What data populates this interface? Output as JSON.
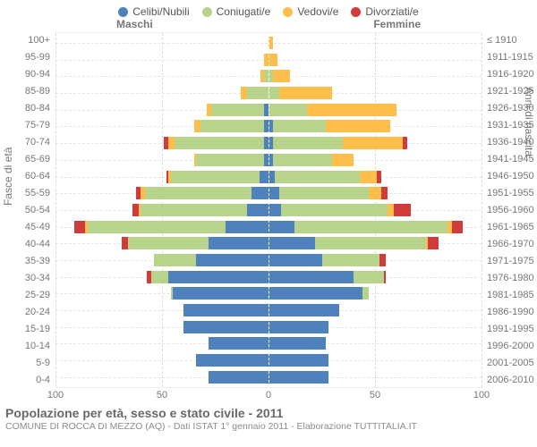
{
  "chart": {
    "type": "population-pyramid",
    "background_color": "#ffffff",
    "grid_color": "#e0e0e0",
    "text_color": "#777777",
    "legend": [
      {
        "label": "Celibi/Nubili",
        "color": "#4f81bd"
      },
      {
        "label": "Coniugati/e",
        "color": "#b8d38c"
      },
      {
        "label": "Vedovi/e",
        "color": "#fdbe4b"
      },
      {
        "label": "Divorziati/e",
        "color": "#d13b3b"
      }
    ],
    "gender_left": "Maschi",
    "gender_right": "Femmine",
    "y_axis_left_title": "Fasce di età",
    "y_axis_right_title": "Anni di nascita",
    "x_axis": {
      "max": 100,
      "ticks": [
        100,
        50,
        0,
        50,
        100
      ]
    },
    "age_brackets": [
      {
        "age": "100+",
        "cohort": "≤ 1910",
        "m": [
          0,
          0,
          0,
          0
        ],
        "f": [
          0,
          0,
          2,
          0
        ]
      },
      {
        "age": "95-99",
        "cohort": "1911-1915",
        "m": [
          0,
          0,
          2,
          0
        ],
        "f": [
          0,
          0,
          4,
          0
        ]
      },
      {
        "age": "90-94",
        "cohort": "1916-1920",
        "m": [
          0,
          2,
          2,
          0
        ],
        "f": [
          0,
          2,
          8,
          0
        ]
      },
      {
        "age": "85-89",
        "cohort": "1921-1925",
        "m": [
          0,
          10,
          3,
          0
        ],
        "f": [
          0,
          5,
          25,
          0
        ]
      },
      {
        "age": "80-84",
        "cohort": "1926-1930",
        "m": [
          2,
          25,
          2,
          0
        ],
        "f": [
          0,
          18,
          42,
          0
        ]
      },
      {
        "age": "75-79",
        "cohort": "1931-1935",
        "m": [
          2,
          30,
          3,
          0
        ],
        "f": [
          2,
          25,
          30,
          0
        ]
      },
      {
        "age": "70-74",
        "cohort": "1936-1940",
        "m": [
          2,
          42,
          3,
          2
        ],
        "f": [
          2,
          33,
          28,
          2
        ]
      },
      {
        "age": "65-69",
        "cohort": "1941-1945",
        "m": [
          2,
          32,
          1,
          0
        ],
        "f": [
          2,
          28,
          10,
          0
        ]
      },
      {
        "age": "60-64",
        "cohort": "1946-1950",
        "m": [
          4,
          42,
          1,
          1
        ],
        "f": [
          3,
          40,
          8,
          2
        ]
      },
      {
        "age": "55-59",
        "cohort": "1951-1955",
        "m": [
          8,
          50,
          2,
          2
        ],
        "f": [
          5,
          42,
          6,
          3
        ]
      },
      {
        "age": "50-54",
        "cohort": "1956-1960",
        "m": [
          10,
          50,
          1,
          3
        ],
        "f": [
          6,
          50,
          3,
          8
        ]
      },
      {
        "age": "45-49",
        "cohort": "1961-1965",
        "m": [
          20,
          65,
          1,
          5
        ],
        "f": [
          12,
          72,
          2,
          5
        ]
      },
      {
        "age": "40-44",
        "cohort": "1966-1970",
        "m": [
          28,
          38,
          0,
          3
        ],
        "f": [
          22,
          52,
          1,
          5
        ]
      },
      {
        "age": "35-39",
        "cohort": "1971-1975",
        "m": [
          34,
          20,
          0,
          0
        ],
        "f": [
          25,
          27,
          0,
          3
        ]
      },
      {
        "age": "30-34",
        "cohort": "1976-1980",
        "m": [
          47,
          8,
          0,
          2
        ],
        "f": [
          40,
          14,
          0,
          1
        ]
      },
      {
        "age": "25-29",
        "cohort": "1981-1985",
        "m": [
          45,
          1,
          0,
          0
        ],
        "f": [
          44,
          3,
          0,
          0
        ]
      },
      {
        "age": "20-24",
        "cohort": "1986-1990",
        "m": [
          40,
          0,
          0,
          0
        ],
        "f": [
          33,
          0,
          0,
          0
        ]
      },
      {
        "age": "15-19",
        "cohort": "1991-1995",
        "m": [
          40,
          0,
          0,
          0
        ],
        "f": [
          28,
          0,
          0,
          0
        ]
      },
      {
        "age": "10-14",
        "cohort": "1996-2000",
        "m": [
          28,
          0,
          0,
          0
        ],
        "f": [
          27,
          0,
          0,
          0
        ]
      },
      {
        "age": "5-9",
        "cohort": "2001-2005",
        "m": [
          34,
          0,
          0,
          0
        ],
        "f": [
          28,
          0,
          0,
          0
        ]
      },
      {
        "age": "0-4",
        "cohort": "2006-2010",
        "m": [
          28,
          0,
          0,
          0
        ],
        "f": [
          28,
          0,
          0,
          0
        ]
      }
    ]
  },
  "footer": {
    "title": "Popolazione per età, sesso e stato civile - 2011",
    "subtitle": "COMUNE DI ROCCA DI MEZZO (AQ) - Dati ISTAT 1° gennaio 2011 - Elaborazione TUTTITALIA.IT"
  }
}
